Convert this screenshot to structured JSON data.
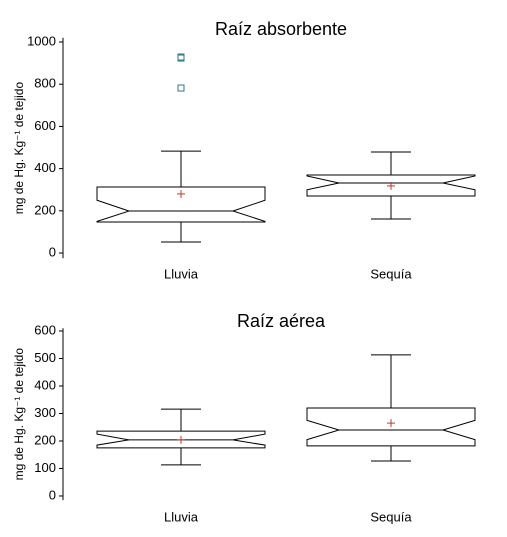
{
  "chart_data": [
    {
      "type": "box",
      "title": "Raíz absorbente",
      "y_label": "mg de Hg. Kg⁻¹ de tejido",
      "categories": [
        "Lluvia",
        "Sequía"
      ],
      "boxes": [
        {
          "whisker_low": 52,
          "q1": 147,
          "notch_low": 150,
          "median": 199,
          "notch_high": 250,
          "q3": 313,
          "whisker_high": 483,
          "mean": 280,
          "outliers": [
            782,
            924,
            929
          ]
        },
        {
          "whisker_low": 161,
          "q1": 270,
          "notch_low": 300,
          "median": 332,
          "notch_high": 365,
          "q3": 370,
          "whisker_high": 479,
          "mean": 318,
          "outliers": []
        }
      ],
      "color": "#000000",
      "mean_color": "#c0392b",
      "outlier_color": "#2a7a8a",
      "ylim": [
        -25,
        1020
      ],
      "yticks": [
        0,
        200,
        400,
        600,
        800,
        1000
      ]
    },
    {
      "type": "box",
      "title": "Raíz aérea",
      "y_label": "mg de Hg. Kg⁻¹ de tejido",
      "categories": [
        "Lluvia",
        "Sequía"
      ],
      "boxes": [
        {
          "whisker_low": 113,
          "q1": 175,
          "notch_low": 185,
          "median": 204,
          "notch_high": 225,
          "q3": 236,
          "whisker_high": 316,
          "mean": 204,
          "outliers": []
        },
        {
          "whisker_low": 127,
          "q1": 182,
          "notch_low": 205,
          "median": 240,
          "notch_high": 275,
          "q3": 320,
          "whisker_high": 513,
          "mean": 265,
          "outliers": []
        }
      ],
      "color": "#000000",
      "mean_color": "#c0392b",
      "outlier_color": "#2a7a8a",
      "ylim": [
        -15,
        610
      ],
      "yticks": [
        0,
        100,
        200,
        300,
        400,
        500,
        600
      ]
    }
  ]
}
